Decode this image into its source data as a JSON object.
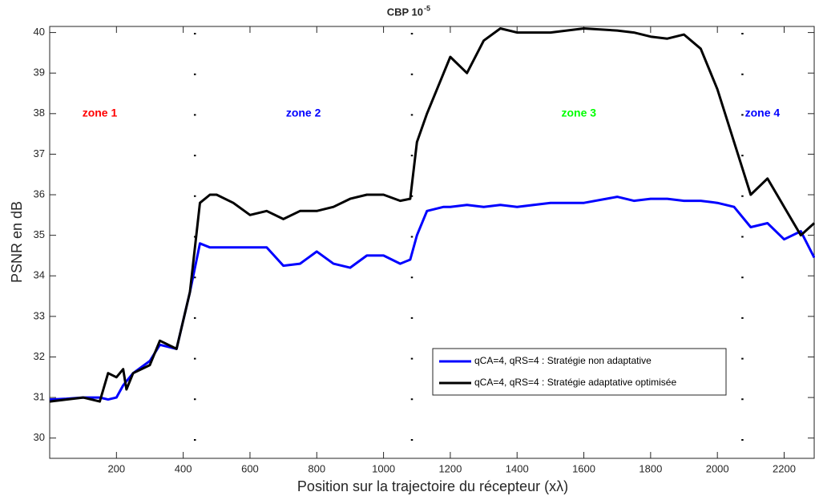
{
  "chart_data": {
    "type": "line",
    "title": "CBP 10",
    "title_exponent": "-5",
    "x_label": "Position sur la trajectoire du récepteur (xλ)",
    "y_label": "PSNR en dB",
    "xlim": [
      0,
      2290
    ],
    "ylim": [
      29.5,
      40.15
    ],
    "xticks": [
      200,
      400,
      600,
      800,
      1000,
      1200,
      1400,
      1600,
      1800,
      2000,
      2200
    ],
    "yticks": [
      30,
      31,
      32,
      33,
      34,
      35,
      36,
      37,
      38,
      39,
      40
    ],
    "x": [
      0,
      50,
      100,
      150,
      175,
      200,
      220,
      230,
      250,
      300,
      330,
      380,
      420,
      450,
      480,
      500,
      550,
      600,
      650,
      700,
      750,
      800,
      850,
      900,
      950,
      1000,
      1050,
      1080,
      1100,
      1130,
      1180,
      1200,
      1250,
      1300,
      1350,
      1400,
      1500,
      1600,
      1700,
      1750,
      1800,
      1850,
      1900,
      1950,
      2000,
      2050,
      2100,
      2150,
      2200,
      2250,
      2290
    ],
    "series": [
      {
        "name": "qCA=4, qRS=4 : Stratégie non adaptative",
        "color": "#0000ff",
        "values": [
          30.95,
          30.97,
          31.0,
          31.0,
          30.95,
          31.0,
          31.3,
          31.4,
          31.6,
          31.9,
          32.3,
          32.2,
          33.6,
          34.8,
          34.7,
          34.7,
          34.7,
          34.7,
          34.7,
          34.25,
          34.3,
          34.6,
          34.3,
          34.2,
          34.5,
          34.5,
          34.3,
          34.4,
          35.0,
          35.6,
          35.7,
          35.7,
          35.75,
          35.7,
          35.75,
          35.7,
          35.8,
          35.8,
          35.95,
          35.85,
          35.9,
          35.9,
          35.85,
          35.85,
          35.8,
          35.7,
          35.2,
          35.3,
          34.9,
          35.1,
          34.45
        ]
      },
      {
        "name": "qCA=4, qRS=4 : Stratégie adaptative optimisée",
        "color": "#000000",
        "values": [
          30.9,
          30.95,
          31.0,
          30.9,
          31.6,
          31.5,
          31.7,
          31.2,
          31.6,
          31.8,
          32.4,
          32.2,
          33.6,
          35.8,
          36.0,
          36.0,
          35.8,
          35.5,
          35.6,
          35.4,
          35.6,
          35.6,
          35.7,
          35.9,
          36.0,
          36.0,
          35.85,
          35.9,
          37.3,
          38.0,
          39.0,
          39.4,
          39.0,
          39.8,
          40.1,
          40.0,
          40.0,
          40.1,
          40.05,
          40.0,
          39.9,
          39.85,
          39.95,
          39.6,
          38.6,
          37.3,
          36.0,
          36.4,
          35.7,
          35.0,
          35.3
        ]
      }
    ],
    "zone_boundaries": [
      435,
      1085,
      2075
    ],
    "annotations": [
      {
        "text": "zone 1",
        "x": 150,
        "y": 38,
        "color": "#ff0000"
      },
      {
        "text": "zone 2",
        "x": 760,
        "y": 38,
        "color": "#0000ff"
      },
      {
        "text": "zone 3",
        "x": 1585,
        "y": 38,
        "color": "#00ff00"
      },
      {
        "text": "zone 4",
        "x": 2135,
        "y": 38,
        "color": "#0000ff"
      }
    ],
    "legend": "lower right"
  }
}
